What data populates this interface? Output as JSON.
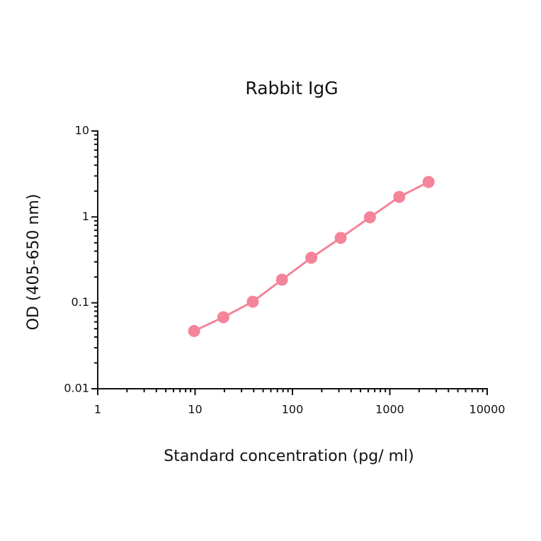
{
  "chart_data": {
    "type": "line",
    "title": "Rabbit IgG",
    "x_label": "Standard concentration (pg/ ml)",
    "y_label": "OD (405-650 nm)",
    "x_scale": "log",
    "y_scale": "log",
    "series": [
      {
        "name": "Rabbit IgG",
        "color": "#f4849a",
        "x": [
          9.77,
          19.5,
          39.1,
          78.1,
          156.25,
          312.5,
          625,
          1250,
          2500
        ],
        "values": [
          0.047,
          0.068,
          0.103,
          0.186,
          0.335,
          0.57,
          0.99,
          1.71,
          2.55
        ]
      }
    ],
    "xlim": [
      1,
      10000
    ],
    "xticks": [
      1,
      10,
      100,
      1000,
      10000
    ],
    "ylim": [
      0.01,
      10
    ],
    "yticks": [
      0.01,
      0.1,
      1,
      10
    ]
  }
}
